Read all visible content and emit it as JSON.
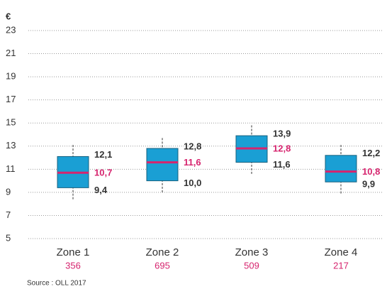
{
  "chart_data": {
    "type": "box",
    "y_label": "€",
    "categories": [
      "Zone 1",
      "Zone 2",
      "Zone 3",
      "Zone 4"
    ],
    "counts": [
      356,
      695,
      509,
      217
    ],
    "whisker_low": [
      8.4,
      9.0,
      10.6,
      8.9
    ],
    "q1": [
      9.4,
      10.0,
      11.6,
      9.9
    ],
    "median": [
      10.7,
      11.6,
      12.8,
      10.8
    ],
    "q3": [
      12.1,
      12.8,
      13.9,
      12.2
    ],
    "whisker_high": [
      13.1,
      13.7,
      14.8,
      13.1
    ],
    "q1_labels": [
      "9,4",
      "10,0",
      "11,6",
      "9,9"
    ],
    "median_labels": [
      "10,7",
      "11,6",
      "12,8",
      "10,8"
    ],
    "q3_labels": [
      "12,1",
      "12,8",
      "13,9",
      "12,2"
    ],
    "box_color": "#1a9fd4",
    "median_color": "#d6246e",
    "ylim": [
      5,
      23
    ],
    "yticks": [
      5,
      7,
      9,
      11,
      13,
      15,
      17,
      19,
      21,
      23
    ],
    "grid": true,
    "source": "Source : OLL 2017"
  }
}
